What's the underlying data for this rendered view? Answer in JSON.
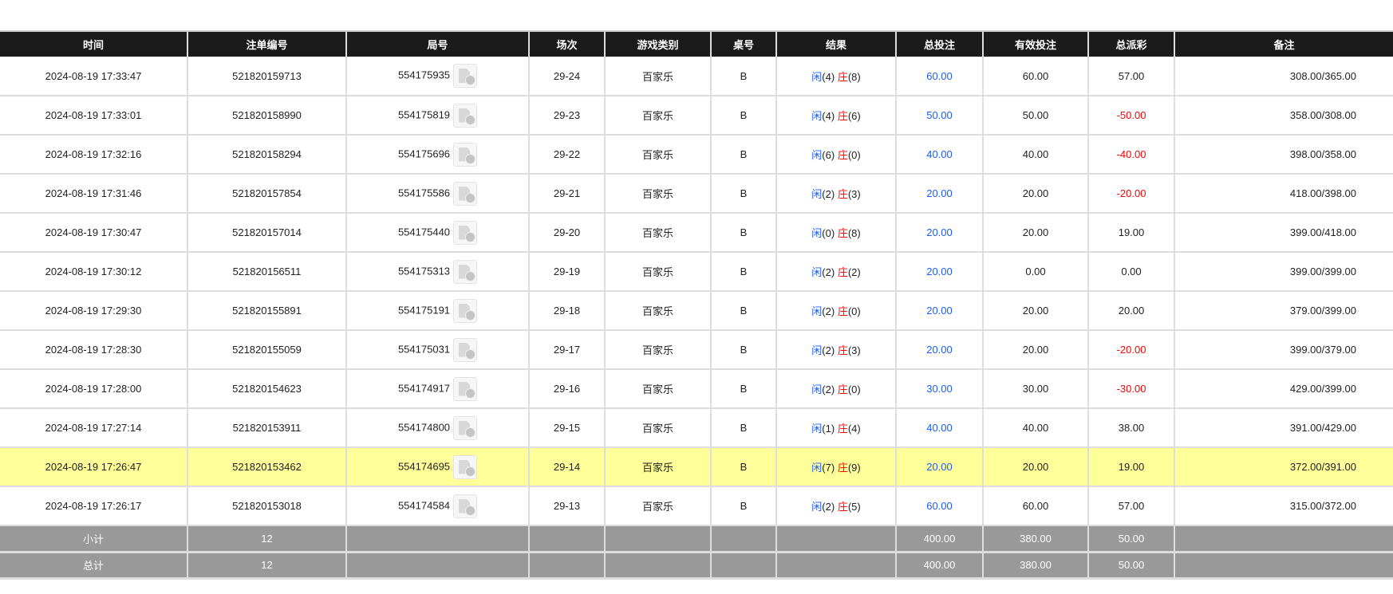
{
  "headers": [
    "时间",
    "注单编号",
    "局号",
    "场次",
    "游戏类别",
    "桌号",
    "结果",
    "总投注",
    "有效投注",
    "总派彩",
    "备注"
  ],
  "colors": {
    "header_bg": "#1b1b1b",
    "highlight": "#ffff99",
    "summary_bg": "#999999",
    "player": "#1a5cff",
    "banker": "#ff0000",
    "negative": "#ff0000"
  },
  "result_labels": {
    "player": "闲",
    "banker": "庄"
  },
  "rows": [
    {
      "time": "2024-08-19 17:33:47",
      "bet_id": "521820159713",
      "round": "554175935",
      "shoe": "29-24",
      "game": "百家乐",
      "table": "B",
      "player": "(4)",
      "banker": "(8)",
      "total_bet": "60.00",
      "valid_bet": "60.00",
      "payout": "57.00",
      "remark": "308.00/365.00"
    },
    {
      "time": "2024-08-19 17:33:01",
      "bet_id": "521820158990",
      "round": "554175819",
      "shoe": "29-23",
      "game": "百家乐",
      "table": "B",
      "player": "(4)",
      "banker": "(6)",
      "total_bet": "50.00",
      "valid_bet": "50.00",
      "payout": "-50.00",
      "remark": "358.00/308.00"
    },
    {
      "time": "2024-08-19 17:32:16",
      "bet_id": "521820158294",
      "round": "554175696",
      "shoe": "29-22",
      "game": "百家乐",
      "table": "B",
      "player": "(6)",
      "banker": "(0)",
      "total_bet": "40.00",
      "valid_bet": "40.00",
      "payout": "-40.00",
      "remark": "398.00/358.00"
    },
    {
      "time": "2024-08-19 17:31:46",
      "bet_id": "521820157854",
      "round": "554175586",
      "shoe": "29-21",
      "game": "百家乐",
      "table": "B",
      "player": "(2)",
      "banker": "(3)",
      "total_bet": "20.00",
      "valid_bet": "20.00",
      "payout": "-20.00",
      "remark": "418.00/398.00"
    },
    {
      "time": "2024-08-19 17:30:47",
      "bet_id": "521820157014",
      "round": "554175440",
      "shoe": "29-20",
      "game": "百家乐",
      "table": "B",
      "player": "(0)",
      "banker": "(8)",
      "total_bet": "20.00",
      "valid_bet": "20.00",
      "payout": "19.00",
      "remark": "399.00/418.00"
    },
    {
      "time": "2024-08-19 17:30:12",
      "bet_id": "521820156511",
      "round": "554175313",
      "shoe": "29-19",
      "game": "百家乐",
      "table": "B",
      "player": "(2)",
      "banker": "(2)",
      "total_bet": "20.00",
      "valid_bet": "0.00",
      "payout": "0.00",
      "remark": "399.00/399.00"
    },
    {
      "time": "2024-08-19 17:29:30",
      "bet_id": "521820155891",
      "round": "554175191",
      "shoe": "29-18",
      "game": "百家乐",
      "table": "B",
      "player": "(2)",
      "banker": "(0)",
      "total_bet": "20.00",
      "valid_bet": "20.00",
      "payout": "20.00",
      "remark": "379.00/399.00"
    },
    {
      "time": "2024-08-19 17:28:30",
      "bet_id": "521820155059",
      "round": "554175031",
      "shoe": "29-17",
      "game": "百家乐",
      "table": "B",
      "player": "(2)",
      "banker": "(3)",
      "total_bet": "20.00",
      "valid_bet": "20.00",
      "payout": "-20.00",
      "remark": "399.00/379.00"
    },
    {
      "time": "2024-08-19 17:28:00",
      "bet_id": "521820154623",
      "round": "554174917",
      "shoe": "29-16",
      "game": "百家乐",
      "table": "B",
      "player": "(2)",
      "banker": "(0)",
      "total_bet": "30.00",
      "valid_bet": "30.00",
      "payout": "-30.00",
      "remark": "429.00/399.00"
    },
    {
      "time": "2024-08-19 17:27:14",
      "bet_id": "521820153911",
      "round": "554174800",
      "shoe": "29-15",
      "game": "百家乐",
      "table": "B",
      "player": "(1)",
      "banker": "(4)",
      "total_bet": "40.00",
      "valid_bet": "40.00",
      "payout": "38.00",
      "remark": "391.00/429.00"
    },
    {
      "time": "2024-08-19 17:26:47",
      "bet_id": "521820153462",
      "round": "554174695",
      "shoe": "29-14",
      "game": "百家乐",
      "table": "B",
      "player": "(7)",
      "banker": "(9)",
      "total_bet": "20.00",
      "valid_bet": "20.00",
      "payout": "19.00",
      "remark": "372.00/391.00",
      "highlighted": true
    },
    {
      "time": "2024-08-19 17:26:17",
      "bet_id": "521820153018",
      "round": "554174584",
      "shoe": "29-13",
      "game": "百家乐",
      "table": "B",
      "player": "(2)",
      "banker": "(5)",
      "total_bet": "60.00",
      "valid_bet": "60.00",
      "payout": "57.00",
      "remark": "315.00/372.00"
    }
  ],
  "subtotal": {
    "label": "小计",
    "count": "12",
    "total_bet": "400.00",
    "valid_bet": "380.00",
    "payout": "50.00"
  },
  "total": {
    "label": "总计",
    "count": "12",
    "total_bet": "400.00",
    "valid_bet": "380.00",
    "payout": "50.00"
  }
}
